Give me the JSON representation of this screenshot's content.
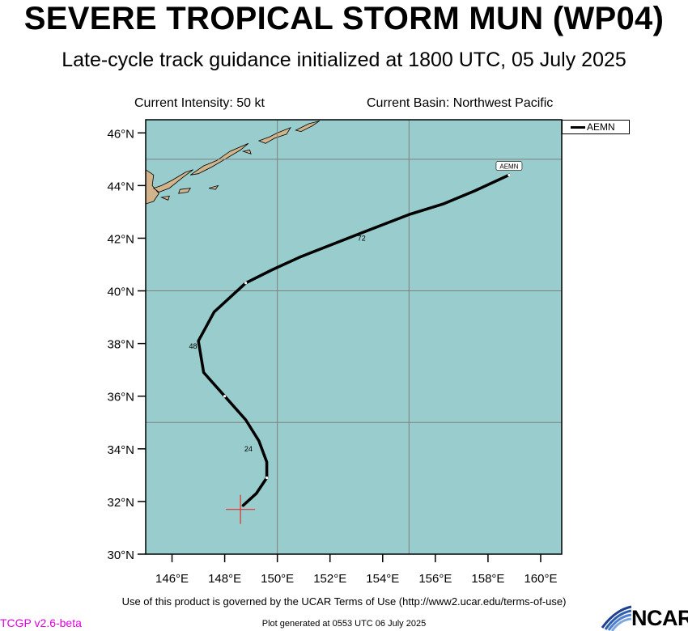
{
  "header": {
    "title": "SEVERE TROPICAL STORM MUN (WP04)",
    "subtitle": "Late-cycle track guidance initialized at 1800 UTC, 05 July 2025",
    "current_intensity": "Current Intensity: 50 kt",
    "current_basin": "Current Basin: Northwest Pacific"
  },
  "map": {
    "lat_range": [
      30,
      46.5
    ],
    "lon_range": [
      145,
      160.8
    ],
    "lat_ticks": [
      30,
      32,
      34,
      36,
      38,
      40,
      42,
      44,
      46
    ],
    "lon_ticks": [
      146,
      148,
      150,
      152,
      154,
      156,
      158,
      160
    ],
    "lat_tick_labels": [
      "30°N",
      "32°N",
      "34°N",
      "36°N",
      "38°N",
      "40°N",
      "42°N",
      "44°N",
      "46°N"
    ],
    "lon_tick_labels": [
      "146°E",
      "148°E",
      "150°E",
      "152°E",
      "154°E",
      "156°E",
      "158°E",
      "160°E"
    ],
    "grid_lats": [
      35,
      40,
      45
    ],
    "grid_lons": [
      150,
      155
    ],
    "colors": {
      "ocean": "#99cccc",
      "land": "#d2b48c",
      "grid": "#808080",
      "track": "#000000",
      "current_position": "#e03030"
    }
  },
  "track": {
    "model": "AEMN",
    "current_position": {
      "lat": 31.7,
      "lon": 148.6
    },
    "points": [
      {
        "lat": 31.85,
        "lon": 148.7
      },
      {
        "lat": 32.3,
        "lon": 149.2
      },
      {
        "lat": 32.9,
        "lon": 149.6
      },
      {
        "lat": 33.5,
        "lon": 149.6
      },
      {
        "lat": 34.3,
        "lon": 149.3
      },
      {
        "lat": 35.1,
        "lon": 148.8
      },
      {
        "lat": 36.0,
        "lon": 148.0
      },
      {
        "lat": 36.9,
        "lon": 147.2
      },
      {
        "lat": 38.1,
        "lon": 147.0
      },
      {
        "lat": 39.2,
        "lon": 147.6
      },
      {
        "lat": 40.3,
        "lon": 148.8
      },
      {
        "lat": 40.8,
        "lon": 149.8
      },
      {
        "lat": 41.3,
        "lon": 150.9
      },
      {
        "lat": 42.2,
        "lon": 153.2
      },
      {
        "lat": 42.9,
        "lon": 155.0
      },
      {
        "lat": 43.3,
        "lon": 156.3
      },
      {
        "lat": 43.8,
        "lon": 157.5
      },
      {
        "lat": 44.4,
        "lon": 158.8
      }
    ],
    "tick_marks": [
      {
        "lat": 32.9,
        "lon": 149.6
      },
      {
        "lat": 36.0,
        "lon": 148.0
      },
      {
        "lat": 40.3,
        "lon": 148.8
      },
      {
        "lat": 44.4,
        "lon": 158.8
      }
    ],
    "hour_labels": [
      {
        "text": "24",
        "lat": 34.0,
        "lon": 148.9
      },
      {
        "text": "48",
        "lat": 37.9,
        "lon": 146.8
      },
      {
        "text": "72",
        "lat": 42.0,
        "lon": 153.2
      }
    ],
    "end_label": {
      "text": "AEMN",
      "lat": 44.7,
      "lon": 158.8
    }
  },
  "legend": {
    "entries": [
      "AEMN"
    ]
  },
  "footer": {
    "terms": "Use of this product is governed by the UCAR Terms of Use (http://www2.ucar.edu/terms-of-use)",
    "version": "TCGP v2.6-beta",
    "plot_generated": "Plot generated at 0553 UTC   06 July 2025",
    "logo": "NCAR"
  }
}
